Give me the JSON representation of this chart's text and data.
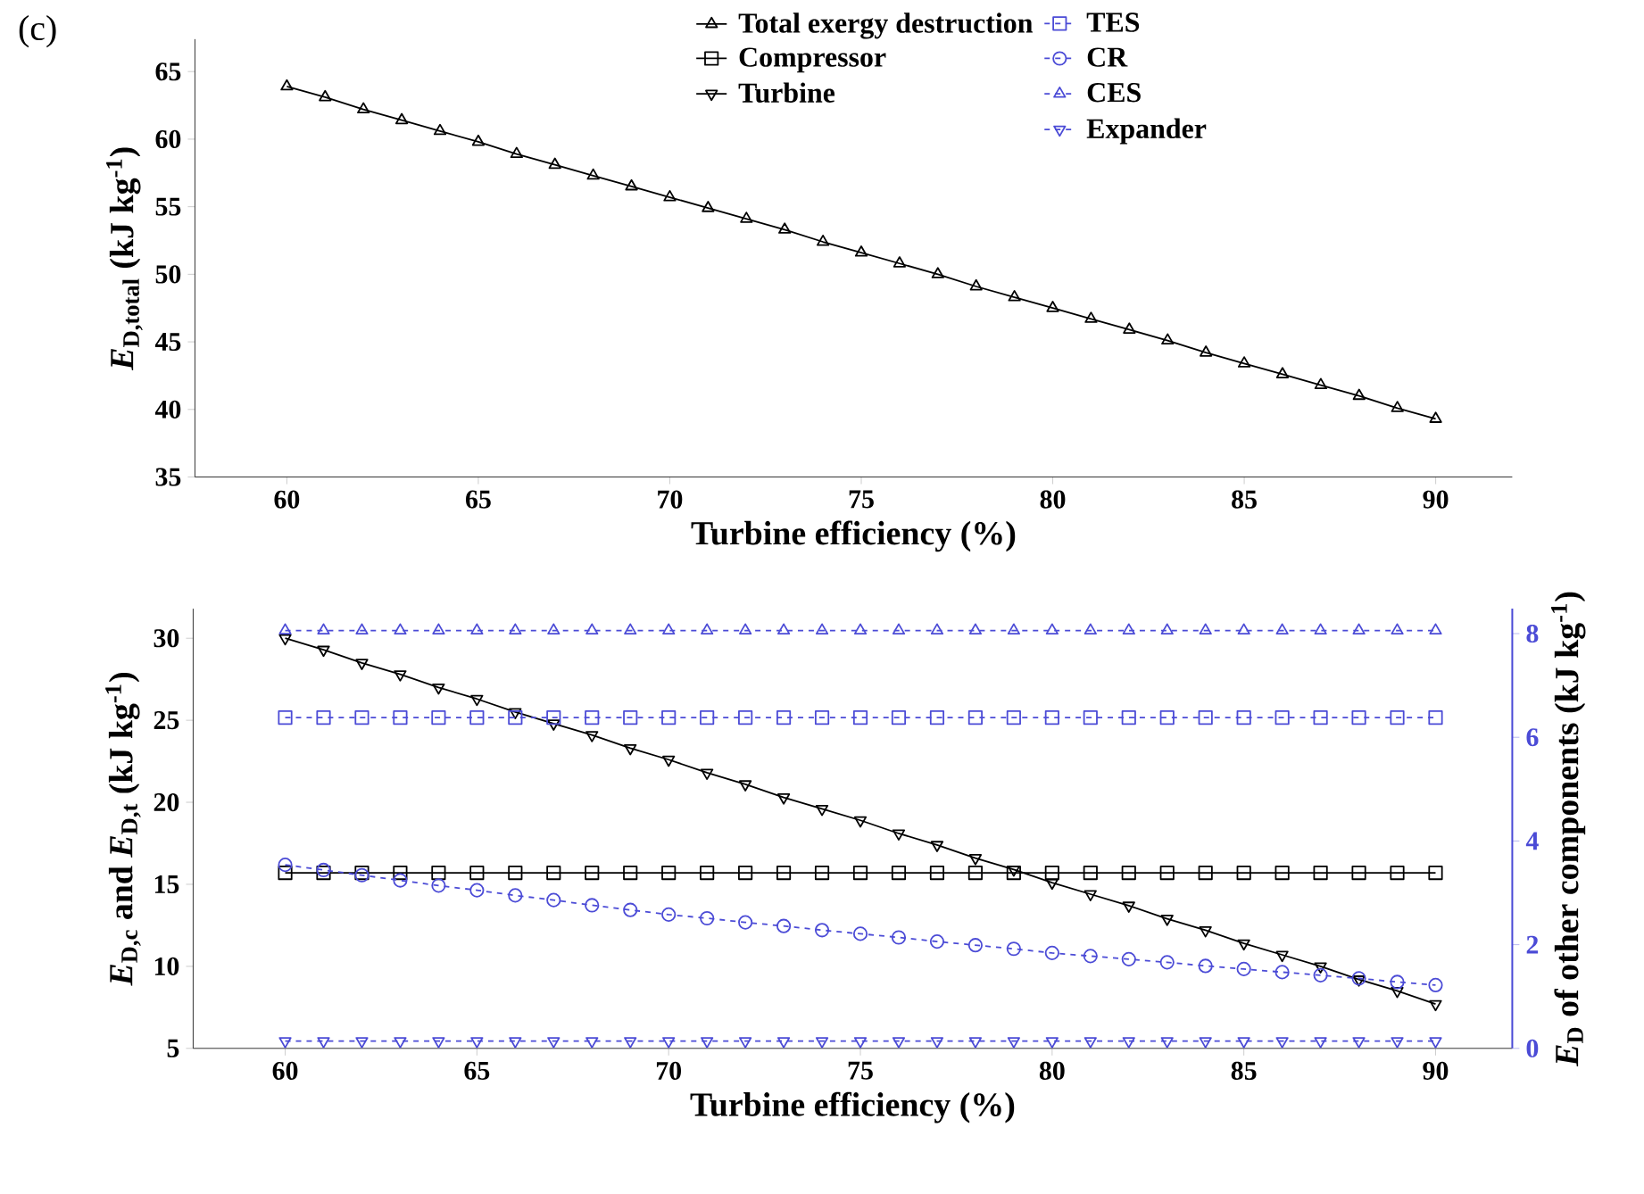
{
  "chart_data": [
    {
      "type": "line",
      "annotations": [
        "(c)"
      ],
      "xlabel": "Turbine efficiency (%)",
      "ylabel": "*E*$_{D,total}$ (kJ kg$^{-1}$)",
      "x": [
        60,
        61,
        62,
        63,
        64,
        65,
        66,
        67,
        68,
        69,
        70,
        71,
        72,
        73,
        74,
        75,
        76,
        77,
        78,
        79,
        80,
        81,
        82,
        83,
        84,
        85,
        86,
        87,
        88,
        89,
        90
      ],
      "xlim": [
        57.6,
        92
      ],
      "xticks": [
        60,
        65,
        70,
        75,
        80,
        85,
        90
      ],
      "ylim": [
        35,
        67.4
      ],
      "yticks": [
        35,
        40,
        45,
        50,
        55,
        60,
        65
      ],
      "legend": "top",
      "series": [
        {
          "name": "Total exergy destruction",
          "color": "#000000",
          "marker": "triangle",
          "values": [
            63.9,
            63.1,
            62.2,
            61.4,
            60.6,
            59.8,
            58.9,
            58.1,
            57.3,
            56.5,
            55.7,
            54.9,
            54.1,
            53.3,
            52.4,
            51.6,
            50.8,
            50.0,
            49.1,
            48.3,
            47.5,
            46.7,
            45.9,
            45.1,
            44.2,
            43.4,
            42.6,
            41.8,
            41.0,
            40.1,
            39.3
          ]
        }
      ]
    },
    {
      "type": "line",
      "xlabel": "Turbine efficiency (%)",
      "ylabel": "*E*$_{D,c}$ and *E*$_{D,t}$ (kJ kg$^{-1}$)",
      "y2label": "*E*$_{D}$ of other components (kJ kg$^{-1}$)",
      "x": [
        60,
        61,
        62,
        63,
        64,
        65,
        66,
        67,
        68,
        69,
        70,
        71,
        72,
        73,
        74,
        75,
        76,
        77,
        78,
        79,
        80,
        81,
        82,
        83,
        84,
        85,
        86,
        87,
        88,
        89,
        90
      ],
      "xlim": [
        57.6,
        92
      ],
      "xticks": [
        60,
        65,
        70,
        75,
        80,
        85,
        90
      ],
      "ylim": [
        5,
        31.8
      ],
      "yticks": [
        5,
        10,
        15,
        20,
        25,
        30
      ],
      "y2lim": [
        0,
        8.48
      ],
      "y2ticks": [
        0,
        2,
        4,
        6,
        8
      ],
      "legend": "top",
      "series": [
        {
          "name": "Compressor",
          "color": "#000000",
          "marker": "square",
          "values": [
            15.7,
            15.7,
            15.7,
            15.7,
            15.7,
            15.7,
            15.7,
            15.7,
            15.7,
            15.7,
            15.7,
            15.7,
            15.7,
            15.7,
            15.7,
            15.7,
            15.7,
            15.7,
            15.7,
            15.7,
            15.7,
            15.7,
            15.7,
            15.7,
            15.7,
            15.7,
            15.7,
            15.7,
            15.7,
            15.7,
            15.7
          ]
        },
        {
          "name": "Turbine",
          "color": "#000000",
          "marker": "triangle-down",
          "values": [
            30.0,
            29.3,
            28.5,
            27.8,
            27.0,
            26.3,
            25.5,
            24.8,
            24.1,
            23.3,
            22.6,
            21.8,
            21.1,
            20.3,
            19.6,
            18.9,
            18.1,
            17.4,
            16.6,
            15.9,
            15.1,
            14.4,
            13.7,
            12.9,
            12.2,
            11.4,
            10.7,
            10.0,
            9.2,
            8.5,
            7.7
          ]
        },
        {
          "name": "TES",
          "color": "#4b4bd6",
          "marker": "square",
          "line_style": "dashed",
          "axis": "y2",
          "values": [
            6.38,
            6.38,
            6.38,
            6.38,
            6.38,
            6.38,
            6.38,
            6.38,
            6.38,
            6.38,
            6.38,
            6.38,
            6.38,
            6.38,
            6.38,
            6.38,
            6.38,
            6.38,
            6.38,
            6.38,
            6.38,
            6.38,
            6.38,
            6.38,
            6.38,
            6.38,
            6.38,
            6.38,
            6.38,
            6.38,
            6.38
          ]
        },
        {
          "name": "CR",
          "color": "#4b4bd6",
          "marker": "circle",
          "line_style": "dashed",
          "axis": "y2",
          "values": [
            3.54,
            3.44,
            3.34,
            3.24,
            3.14,
            3.05,
            2.95,
            2.86,
            2.76,
            2.67,
            2.58,
            2.51,
            2.43,
            2.36,
            2.28,
            2.21,
            2.14,
            2.06,
            1.99,
            1.92,
            1.84,
            1.78,
            1.72,
            1.66,
            1.59,
            1.53,
            1.47,
            1.41,
            1.35,
            1.28,
            1.22
          ]
        },
        {
          "name": "CES",
          "color": "#4b4bd6",
          "marker": "triangle",
          "line_style": "dashed",
          "axis": "y2",
          "values": [
            8.06,
            8.06,
            8.06,
            8.06,
            8.06,
            8.06,
            8.06,
            8.06,
            8.06,
            8.06,
            8.06,
            8.06,
            8.06,
            8.06,
            8.06,
            8.06,
            8.06,
            8.06,
            8.06,
            8.06,
            8.06,
            8.06,
            8.06,
            8.06,
            8.06,
            8.06,
            8.06,
            8.06,
            8.06,
            8.06,
            8.06
          ]
        },
        {
          "name": "Expander",
          "color": "#4b4bd6",
          "marker": "triangle-down",
          "line_style": "dashed",
          "axis": "y2",
          "values": [
            0.14,
            0.14,
            0.14,
            0.14,
            0.14,
            0.14,
            0.14,
            0.14,
            0.14,
            0.14,
            0.14,
            0.14,
            0.14,
            0.14,
            0.14,
            0.14,
            0.14,
            0.14,
            0.14,
            0.14,
            0.14,
            0.14,
            0.14,
            0.14,
            0.14,
            0.14,
            0.14,
            0.14,
            0.14,
            0.14,
            0.14
          ]
        }
      ]
    }
  ]
}
